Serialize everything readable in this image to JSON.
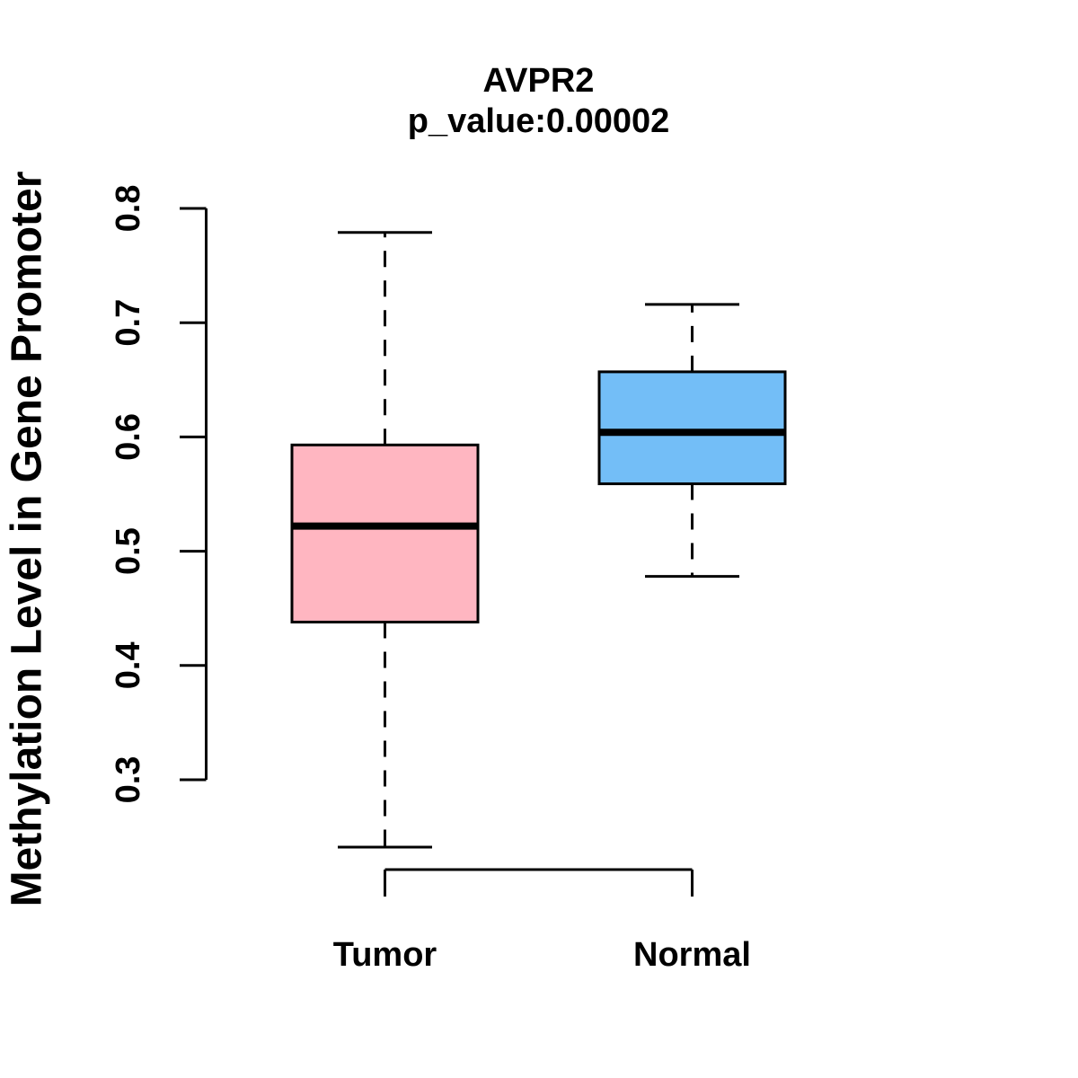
{
  "chart_data": {
    "type": "boxplot",
    "title": "AVPR2",
    "subtitle": "p_value:0.00002",
    "ylabel": "Methylation Level in Gene Promoter",
    "xlabel": "",
    "categories": [
      "Tumor",
      "Normal"
    ],
    "series": [
      {
        "name": "Tumor",
        "fill_color": "#FFB6C1",
        "lower_whisker": 0.241,
        "q1": 0.438,
        "median": 0.522,
        "q3": 0.593,
        "upper_whisker": 0.779
      },
      {
        "name": "Normal",
        "fill_color": "#73BEF7",
        "lower_whisker": 0.478,
        "q1": 0.559,
        "median": 0.604,
        "q3": 0.657,
        "upper_whisker": 0.716
      }
    ],
    "y_ticks": [
      0.3,
      0.4,
      0.5,
      0.6,
      0.7,
      0.8
    ],
    "ylim": [
      0.24,
      0.8
    ],
    "grid": false,
    "legend_position": "none",
    "stroke_color": "#000000",
    "background_color": "#FFFFFF"
  }
}
